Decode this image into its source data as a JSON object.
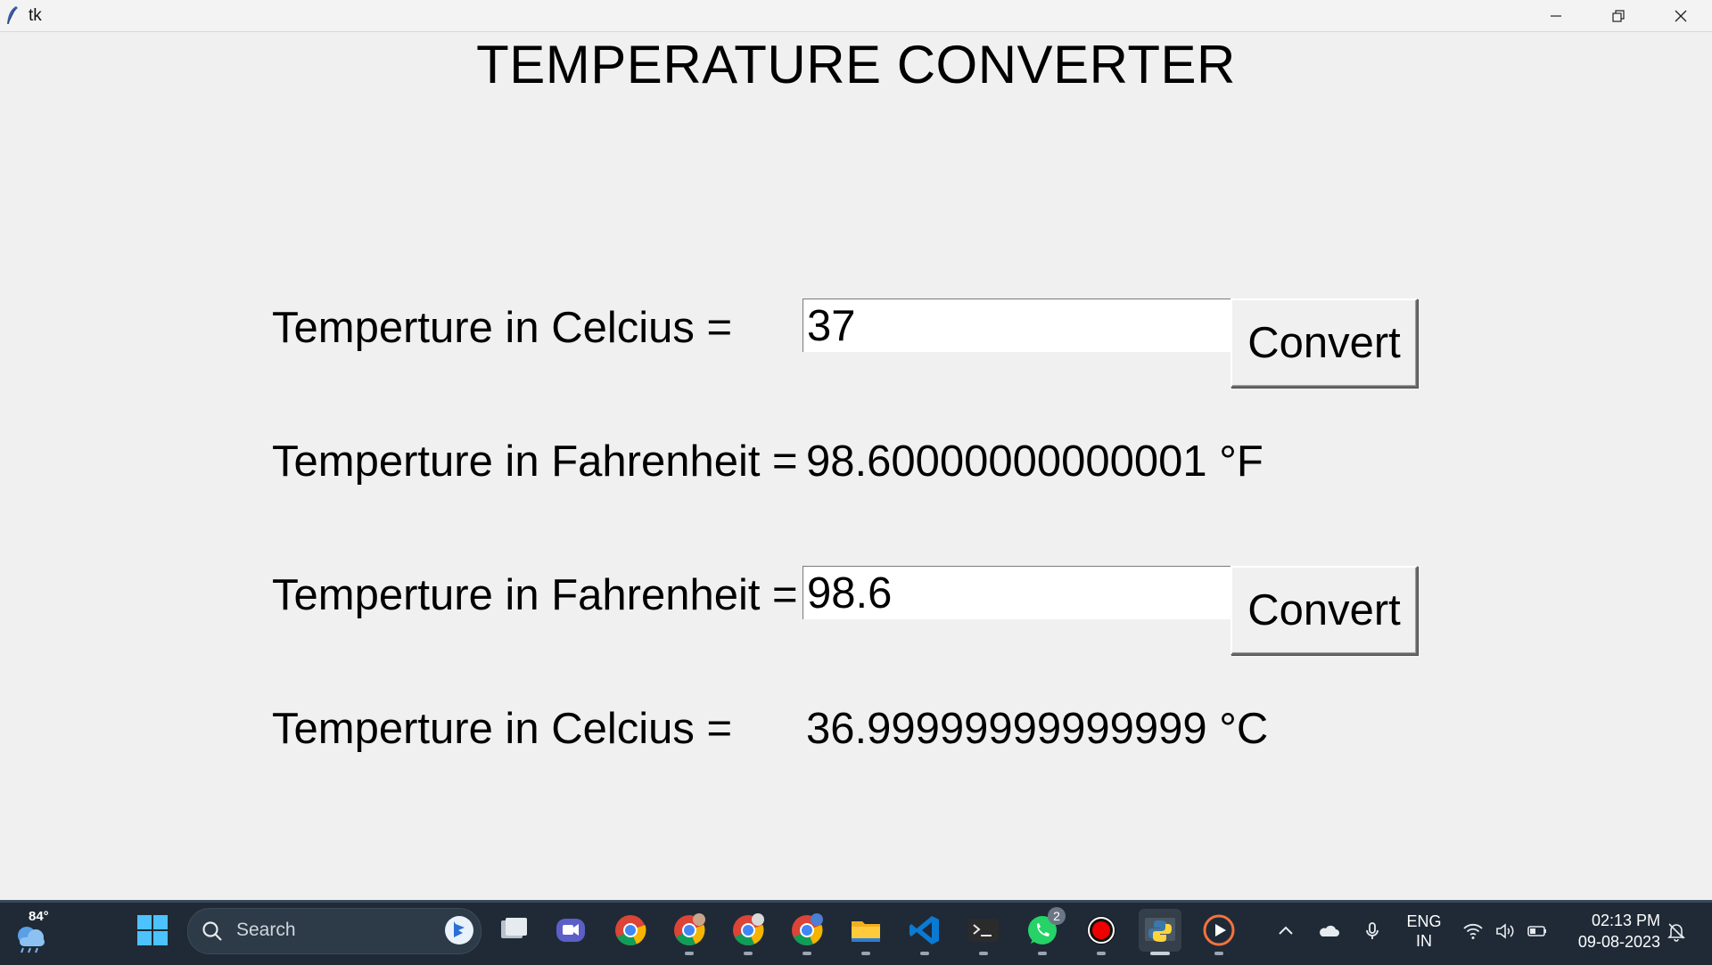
{
  "window": {
    "title": "tk",
    "controls": [
      "minimize-icon",
      "restore-icon",
      "close-icon"
    ]
  },
  "app": {
    "heading": "TEMPERATURE CONVERTER",
    "row1": {
      "label": "Temperture in Celcius =",
      "input_value": "37",
      "button": "Convert"
    },
    "row2": {
      "label": "Temperture in Fahrenheit =",
      "result": "98.60000000000001 °F"
    },
    "row3": {
      "label": "Temperture in Fahrenheit =",
      "input_value": "98.6",
      "button": "Convert"
    },
    "row4": {
      "label": "Temperture in Celcius =",
      "result": "36.99999999999999 °C"
    }
  },
  "taskbar": {
    "weather_temp": "84°",
    "search_placeholder": "Search",
    "apps": [
      {
        "name": "start-icon"
      },
      {
        "name": "task-view-icon"
      },
      {
        "name": "meet-icon"
      },
      {
        "name": "chrome-icon"
      },
      {
        "name": "chrome-profile-1-icon"
      },
      {
        "name": "chrome-profile-2-icon"
      },
      {
        "name": "chrome-profile-3-icon"
      },
      {
        "name": "file-explorer-icon"
      },
      {
        "name": "vscode-icon"
      },
      {
        "name": "terminal-icon"
      },
      {
        "name": "whatsapp-icon",
        "badge": "2"
      },
      {
        "name": "record-icon"
      },
      {
        "name": "python-icon",
        "active": true
      },
      {
        "name": "media-player-icon"
      }
    ],
    "tray": {
      "language_top": "ENG",
      "language_bottom": "IN",
      "time": "02:13 PM",
      "date": "09-08-2023"
    },
    "colors": {
      "taskbar_bg": "#1f2a36",
      "window_bg": "#f0f0f0"
    }
  }
}
